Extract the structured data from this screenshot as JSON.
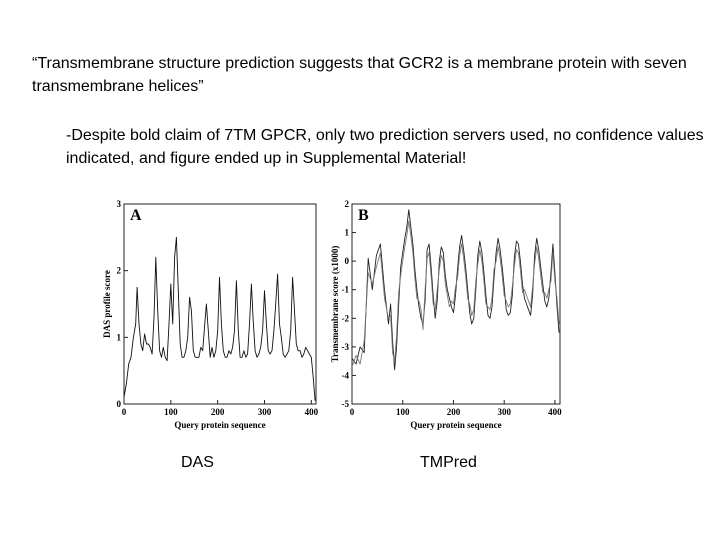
{
  "slide": {
    "quote": "“Transmembrane structure prediction suggests that GCR2 is a membrane protein with seven transmembrane helices”",
    "critique": "-Despite bold claim of 7TM GPCR, only two prediction servers used, no confidence values indicated, and figure ended up in Supplemental Material!",
    "caption_a": "DAS",
    "caption_b": "TMPred"
  },
  "chart_data": [
    {
      "type": "line",
      "panel_label": "A",
      "title": "",
      "xlabel": "Query protein sequence",
      "ylabel": "DAS profile score",
      "xlim": [
        0,
        410
      ],
      "ylim": [
        0,
        3
      ],
      "x_ticks": [
        0,
        100,
        200,
        300,
        400
      ],
      "y_ticks": [
        0,
        1,
        2,
        3
      ],
      "grid": false,
      "series": [
        {
          "x": [
            0,
            5,
            10,
            15,
            20,
            25,
            28,
            32,
            36,
            40,
            44,
            48,
            52,
            56,
            60,
            64,
            68,
            72,
            76,
            80,
            84,
            88,
            92,
            96,
            100,
            104,
            108,
            112,
            116,
            120,
            124,
            128,
            132,
            136,
            140,
            144,
            148,
            152,
            156,
            160,
            164,
            168,
            172,
            176,
            180,
            184,
            188,
            192,
            196,
            200,
            204,
            208,
            212,
            216,
            220,
            224,
            228,
            232,
            236,
            240,
            244,
            248,
            252,
            256,
            260,
            264,
            268,
            272,
            276,
            280,
            284,
            288,
            292,
            296,
            300,
            304,
            308,
            312,
            316,
            320,
            324,
            328,
            332,
            336,
            340,
            344,
            348,
            352,
            356,
            360,
            364,
            368,
            372,
            376,
            380,
            384,
            388,
            392,
            396,
            400,
            404,
            408
          ],
          "values": [
            0.1,
            0.3,
            0.6,
            0.7,
            1.0,
            1.2,
            1.75,
            1.2,
            0.9,
            0.8,
            1.05,
            0.9,
            0.9,
            0.85,
            0.75,
            1.3,
            2.2,
            1.4,
            0.8,
            0.7,
            0.85,
            0.7,
            0.65,
            1.2,
            1.8,
            1.2,
            2.2,
            2.5,
            1.7,
            0.9,
            0.7,
            0.7,
            0.8,
            1.0,
            1.6,
            1.4,
            0.8,
            0.7,
            0.7,
            0.7,
            0.85,
            0.8,
            1.15,
            1.5,
            1.1,
            0.7,
            0.85,
            0.7,
            0.8,
            1.1,
            1.9,
            1.2,
            0.8,
            0.7,
            0.7,
            0.8,
            0.75,
            0.85,
            1.1,
            1.85,
            1.1,
            0.7,
            0.7,
            0.8,
            0.7,
            0.75,
            1.2,
            1.8,
            1.25,
            0.8,
            0.7,
            0.75,
            0.85,
            1.1,
            1.7,
            1.2,
            0.8,
            0.75,
            0.8,
            1.1,
            1.5,
            1.95,
            1.2,
            1.0,
            0.75,
            0.7,
            0.75,
            0.8,
            1.1,
            1.9,
            1.4,
            0.9,
            0.8,
            0.8,
            0.7,
            0.75,
            0.85,
            0.8,
            0.75,
            0.7,
            0.4,
            0.05
          ]
        }
      ]
    },
    {
      "type": "line",
      "panel_label": "B",
      "title": "",
      "xlabel": "Query protein sequence",
      "ylabel": "Transmembrane score (x1000)",
      "xlim": [
        0,
        410
      ],
      "ylim": [
        -5,
        2
      ],
      "x_ticks": [
        0,
        100,
        200,
        300,
        400
      ],
      "y_ticks": [
        -5,
        -4,
        -3,
        -2,
        -1,
        0,
        1,
        2
      ],
      "grid": false,
      "series": [
        {
          "x": [
            0,
            8,
            16,
            24,
            32,
            40,
            48,
            56,
            64,
            72,
            76,
            80,
            84,
            88,
            92,
            96,
            100,
            104,
            108,
            112,
            116,
            120,
            124,
            128,
            132,
            136,
            140,
            144,
            148,
            152,
            156,
            160,
            164,
            168,
            172,
            176,
            180,
            184,
            188,
            192,
            196,
            200,
            204,
            208,
            212,
            216,
            220,
            224,
            228,
            232,
            236,
            240,
            244,
            248,
            252,
            256,
            260,
            264,
            268,
            272,
            276,
            280,
            284,
            288,
            292,
            296,
            300,
            304,
            308,
            312,
            316,
            320,
            324,
            328,
            332,
            336,
            340,
            344,
            348,
            352,
            356,
            360,
            364,
            368,
            372,
            376,
            380,
            384,
            388,
            392,
            396,
            400,
            404,
            408
          ],
          "values": [
            -3.4,
            -3.6,
            -3.0,
            -3.2,
            0.1,
            -1.0,
            0.2,
            0.6,
            -1.0,
            -2.2,
            -1.5,
            -2.8,
            -3.8,
            -3.0,
            -1.5,
            -0.2,
            0.3,
            0.8,
            1.2,
            1.8,
            1.2,
            0.6,
            -0.3,
            -1.0,
            -1.6,
            -2.0,
            -2.2,
            -1.4,
            0.4,
            0.6,
            -0.2,
            -1.2,
            -2.0,
            -1.4,
            0.0,
            0.5,
            0.3,
            -0.5,
            -1.0,
            -1.3,
            -1.6,
            -1.8,
            -1.2,
            -0.3,
            0.5,
            0.9,
            0.4,
            -0.2,
            -1.0,
            -1.8,
            -2.2,
            -2.0,
            -1.0,
            0.2,
            0.7,
            0.3,
            -0.4,
            -1.2,
            -1.9,
            -2.0,
            -1.6,
            -0.6,
            0.3,
            0.8,
            0.4,
            -0.2,
            -0.9,
            -1.7,
            -1.9,
            -1.8,
            -1.2,
            0.1,
            0.7,
            0.6,
            0.0,
            -0.8,
            -1.3,
            -1.5,
            -1.7,
            -1.9,
            -1.2,
            0.2,
            0.8,
            0.4,
            -0.2,
            -0.8,
            -1.4,
            -1.6,
            -1.3,
            -0.4,
            0.6,
            -0.4,
            -1.6,
            -2.5
          ]
        },
        {
          "x": [
            0,
            8,
            16,
            24,
            32,
            40,
            48,
            56,
            64,
            72,
            76,
            80,
            84,
            88,
            92,
            96,
            100,
            104,
            108,
            112,
            116,
            120,
            124,
            128,
            132,
            136,
            140,
            144,
            148,
            152,
            156,
            160,
            164,
            168,
            172,
            176,
            180,
            184,
            188,
            192,
            196,
            200,
            204,
            208,
            212,
            216,
            220,
            224,
            228,
            232,
            236,
            240,
            244,
            248,
            252,
            256,
            260,
            264,
            268,
            272,
            276,
            280,
            284,
            288,
            292,
            296,
            300,
            304,
            308,
            312,
            316,
            320,
            324,
            328,
            332,
            336,
            340,
            344,
            348,
            352,
            356,
            360,
            364,
            368,
            372,
            376,
            380,
            384,
            388,
            392,
            396,
            400,
            404,
            408
          ],
          "values": [
            -3.7,
            -3.3,
            -3.6,
            -2.8,
            -0.4,
            -0.8,
            -0.2,
            0.3,
            -1.3,
            -2.0,
            -1.9,
            -3.2,
            -3.5,
            -2.6,
            -1.1,
            -0.5,
            0.0,
            0.5,
            0.9,
            1.4,
            0.9,
            0.3,
            -0.6,
            -1.3,
            -1.4,
            -1.7,
            -2.4,
            -1.0,
            0.1,
            0.3,
            -0.5,
            -1.5,
            -1.7,
            -1.0,
            -0.3,
            0.2,
            0.0,
            -0.8,
            -1.2,
            -1.6,
            -1.4,
            -1.5,
            -0.9,
            -0.6,
            0.2,
            0.6,
            0.1,
            -0.5,
            -1.3,
            -1.5,
            -1.9,
            -1.7,
            -0.7,
            -0.1,
            0.4,
            0.0,
            -0.7,
            -1.5,
            -1.6,
            -1.7,
            -1.3,
            -0.3,
            0.0,
            0.5,
            0.1,
            -0.5,
            -1.2,
            -1.4,
            -1.6,
            -1.5,
            -0.9,
            -0.2,
            0.4,
            0.3,
            -0.3,
            -1.1,
            -1.0,
            -1.2,
            -1.4,
            -1.6,
            -0.9,
            -0.1,
            0.5,
            0.1,
            -0.5,
            -1.1,
            -1.1,
            -1.3,
            -1.0,
            -0.7,
            0.3,
            -0.7,
            -1.3,
            -2.2
          ]
        }
      ]
    }
  ]
}
